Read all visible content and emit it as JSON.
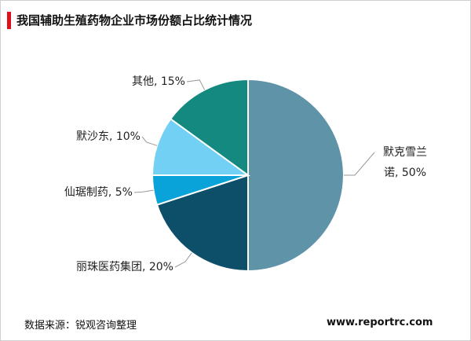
{
  "chart_data": {
    "type": "pie",
    "title": "我国辅助生殖药物企业市场份额占比统计情况",
    "values": [
      50,
      20,
      5,
      10,
      15
    ],
    "value_labels": [
      "默克雪兰诺, 50%",
      "丽珠医药集团, 20%",
      "仙琚制药, 5%",
      "默沙东, 10%",
      "其他, 15%"
    ],
    "colors": [
      "#5e93a8",
      "#0d4f69",
      "#0aa3d9",
      "#72d0f4",
      "#13897f"
    ],
    "source": "数据来源：锐观咨询整理",
    "website": "www.reportrc.com"
  }
}
